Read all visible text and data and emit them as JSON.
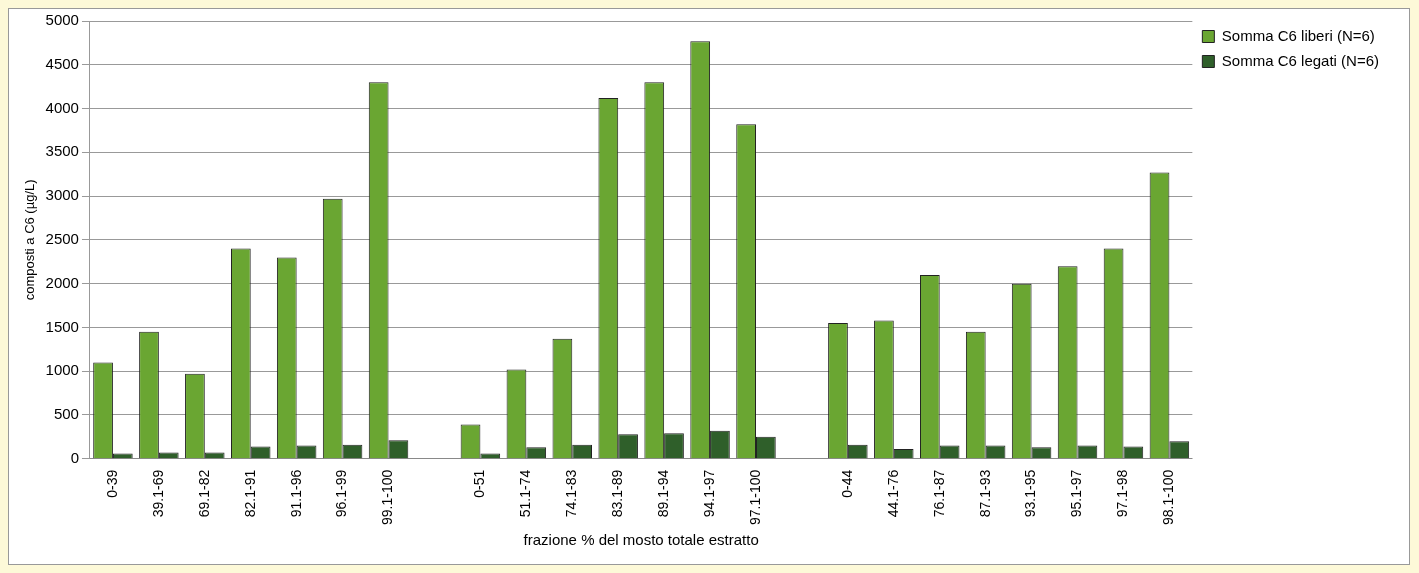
{
  "chart_data": {
    "type": "bar",
    "xlabel": "frazione % del mosto totale estratto",
    "ylabel": "composti a C6 (µg/L)",
    "categories": [
      "0-39",
      "39.1-69",
      "69.1-82",
      "82.1-91",
      "91.1-96",
      "96.1-99",
      "99.1-100",
      null,
      "0-51",
      "51.1-74",
      "74.1-83",
      "83.1-89",
      "89.1-94",
      "94.1-97",
      "97.1-100",
      null,
      "0-44",
      "44.1-76",
      "76.1-87",
      "87.1-93",
      "93.1-95",
      "95.1-97",
      "97.1-98",
      "98.1-100"
    ],
    "series": [
      {
        "name": "Somma C6 liberi (N=6)",
        "color": "#6aa632",
        "values": [
          1100,
          1450,
          970,
          2400,
          2300,
          2970,
          4300,
          null,
          390,
          1020,
          1370,
          4120,
          4300,
          4770,
          3820,
          null,
          1550,
          1580,
          2100,
          1450,
          2000,
          2200,
          2400,
          3270
        ]
      },
      {
        "name": "Somma C6 legati (N=6)",
        "color": "#2f5f2a",
        "values": [
          60,
          70,
          70,
          140,
          150,
          160,
          210,
          null,
          60,
          130,
          160,
          280,
          290,
          320,
          250,
          null,
          160,
          110,
          150,
          150,
          130,
          150,
          140,
          200
        ]
      }
    ],
    "ylim": [
      0,
      5000
    ],
    "yticks": [
      0,
      500,
      1000,
      1500,
      2000,
      2500,
      3000,
      3500,
      4000,
      4500,
      5000
    ],
    "grid": "y",
    "legend": "top right"
  }
}
